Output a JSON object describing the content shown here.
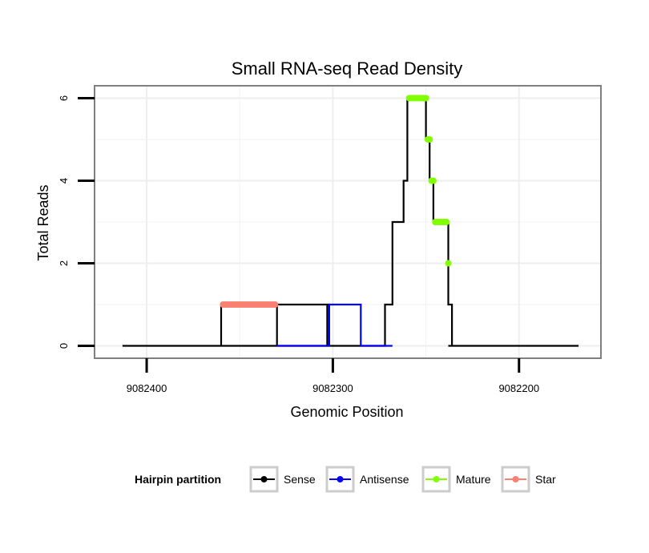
{
  "chart_data": {
    "type": "line",
    "title": "Small RNA-seq Read Density",
    "xlabel": "Genomic Position",
    "ylabel": "Total Reads",
    "xlim": [
      9082428,
      9082156
    ],
    "ylim": [
      -0.3,
      6.3
    ],
    "x_reversed": true,
    "x_ticks": [
      9082400,
      9082300,
      9082200
    ],
    "x_tick_labels": [
      "9082400",
      "9082300",
      "9082200"
    ],
    "y_ticks": [
      0,
      2,
      4,
      6
    ],
    "y_tick_labels": [
      "0",
      "2",
      "4",
      "6"
    ],
    "grid": true,
    "legend": {
      "title": "Hairpin partition",
      "position": "bottom",
      "entries": [
        "Sense",
        "Antisense",
        "Mature",
        "Star"
      ]
    },
    "series": [
      {
        "name": "Sense",
        "color": "#000000",
        "style": "line",
        "points": [
          [
            9082413,
            0
          ],
          [
            9082330,
            0
          ],
          [
            9082330,
            1
          ],
          [
            9082302,
            1
          ],
          [
            9082302,
            0
          ],
          [
            9082360,
            0
          ],
          [
            9082360,
            1
          ],
          [
            9082303,
            1
          ],
          [
            9082303,
            0
          ],
          [
            9082272,
            0
          ],
          [
            9082272,
            1
          ],
          [
            9082268,
            1
          ],
          [
            9082268,
            3
          ],
          [
            9082262,
            3
          ],
          [
            9082262,
            4
          ],
          [
            9082260,
            4
          ],
          [
            9082260,
            6
          ],
          [
            9082250,
            6
          ],
          [
            9082250,
            5
          ],
          [
            9082248,
            5
          ],
          [
            9082248,
            4
          ],
          [
            9082246,
            4
          ],
          [
            9082246,
            3
          ],
          [
            9082238,
            3
          ],
          [
            9082238,
            1
          ],
          [
            9082236,
            1
          ],
          [
            9082236,
            0
          ],
          [
            9082238,
            0
          ],
          [
            9082168,
            0
          ]
        ]
      },
      {
        "name": "Antisense",
        "color": "#0000ff",
        "style": "line",
        "points": [
          [
            9082330,
            0
          ],
          [
            9082302,
            0
          ],
          [
            9082302,
            1
          ],
          [
            9082285,
            1
          ],
          [
            9082285,
            0
          ],
          [
            9082268,
            0
          ]
        ]
      },
      {
        "name": "Mature",
        "color": "#7fff00",
        "style": "points",
        "points": [
          [
            9082259,
            6
          ],
          [
            9082258,
            6
          ],
          [
            9082257,
            6
          ],
          [
            9082256,
            6
          ],
          [
            9082255,
            6
          ],
          [
            9082254,
            6
          ],
          [
            9082253,
            6
          ],
          [
            9082252,
            6
          ],
          [
            9082251,
            6
          ],
          [
            9082250,
            6
          ],
          [
            9082249,
            5
          ],
          [
            9082248,
            5
          ],
          [
            9082247,
            4
          ],
          [
            9082246,
            4
          ],
          [
            9082245,
            3
          ],
          [
            9082244,
            3
          ],
          [
            9082243,
            3
          ],
          [
            9082242,
            3
          ],
          [
            9082241,
            3
          ],
          [
            9082240,
            3
          ],
          [
            9082239,
            3
          ],
          [
            9082238,
            2
          ]
        ]
      },
      {
        "name": "Star",
        "color": "#fa8072",
        "style": "points",
        "points": [
          [
            9082359,
            1
          ],
          [
            9082358,
            1
          ],
          [
            9082357,
            1
          ],
          [
            9082356,
            1
          ],
          [
            9082355,
            1
          ],
          [
            9082354,
            1
          ],
          [
            9082353,
            1
          ],
          [
            9082352,
            1
          ],
          [
            9082351,
            1
          ],
          [
            9082350,
            1
          ],
          [
            9082349,
            1
          ],
          [
            9082348,
            1
          ],
          [
            9082347,
            1
          ],
          [
            9082346,
            1
          ],
          [
            9082345,
            1
          ],
          [
            9082344,
            1
          ],
          [
            9082343,
            1
          ],
          [
            9082342,
            1
          ],
          [
            9082341,
            1
          ],
          [
            9082340,
            1
          ],
          [
            9082339,
            1
          ],
          [
            9082338,
            1
          ],
          [
            9082337,
            1
          ],
          [
            9082336,
            1
          ],
          [
            9082335,
            1
          ],
          [
            9082334,
            1
          ],
          [
            9082333,
            1
          ],
          [
            9082332,
            1
          ],
          [
            9082331,
            1
          ]
        ]
      }
    ]
  }
}
